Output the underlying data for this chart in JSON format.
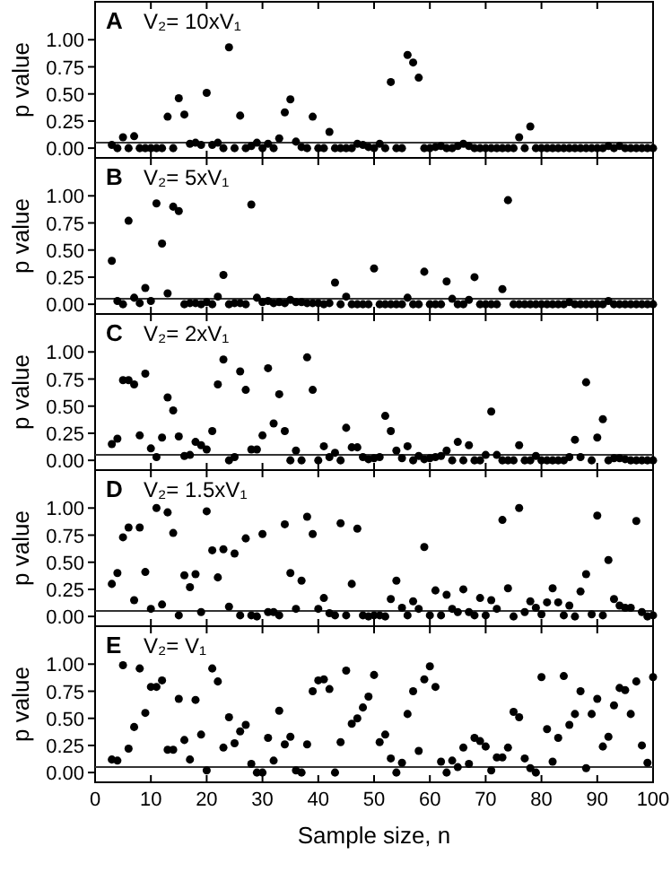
{
  "chart_data": [
    {
      "type": "scatter",
      "annotations": [
        "A",
        "V₂= 10xV₁"
      ],
      "ylabel": "p value",
      "color": "#000000",
      "marker": "circle",
      "tick_labels": "y",
      "xlim": [
        0,
        100
      ],
      "xticks": [
        0,
        10,
        20,
        30,
        40,
        50,
        60,
        70,
        80,
        90,
        100
      ],
      "ylim": [
        -0.09,
        1.35
      ],
      "yticks": [
        {
          "value": 0,
          "label": "0.00"
        },
        {
          "value": 0.25,
          "label": "0.25"
        },
        {
          "value": 0.5,
          "label": "0.50"
        },
        {
          "value": 0.75,
          "label": "0.75"
        },
        {
          "value": 1,
          "label": "1.00"
        }
      ],
      "ref_lines": [
        {
          "axis": "y",
          "value": 0.05,
          "color": "#333333"
        }
      ],
      "x": [
        3,
        4,
        5,
        6,
        7,
        8,
        9,
        10,
        11,
        12,
        13,
        14,
        15,
        16,
        17,
        18,
        19,
        20,
        21,
        22,
        23,
        24,
        25,
        26,
        27,
        28,
        29,
        30,
        31,
        32,
        33,
        34,
        35,
        36,
        37,
        38,
        39,
        40,
        41,
        42,
        43,
        44,
        45,
        46,
        47,
        48,
        49,
        50,
        51,
        52,
        53,
        54,
        55,
        56,
        57,
        58,
        59,
        60,
        61,
        62,
        63,
        64,
        65,
        66,
        67,
        68,
        69,
        70,
        71,
        72,
        73,
        74,
        75,
        76,
        77,
        78,
        79,
        80,
        81,
        82,
        83,
        84,
        85,
        86,
        87,
        88,
        89,
        90,
        91,
        92,
        93,
        94,
        95,
        96,
        97,
        98,
        99,
        100
      ],
      "values": [
        0.03,
        0,
        0.1,
        0,
        0.11,
        0,
        0,
        0,
        0,
        0,
        0.29,
        0,
        0.46,
        0.31,
        0.04,
        0.05,
        0.03,
        0.51,
        0.03,
        0.05,
        0,
        0.93,
        0,
        0.3,
        0,
        0.02,
        0.05,
        0,
        0.04,
        0,
        0.09,
        0.33,
        0.45,
        0.06,
        0.01,
        0,
        0.29,
        0,
        0,
        0.15,
        0,
        0,
        0,
        0,
        0.04,
        0.03,
        0.01,
        0,
        0.04,
        0,
        0.61,
        0,
        0,
        0.86,
        0.79,
        0.65,
        0,
        0,
        0.01,
        0.02,
        0,
        0,
        0.02,
        0.04,
        0.02,
        0,
        0,
        0,
        0,
        0,
        0,
        0,
        0,
        0.1,
        0,
        0.2,
        0,
        0,
        0,
        0,
        0,
        0,
        0,
        0,
        0,
        0,
        0,
        0,
        0,
        0.02,
        0,
        0.02,
        0,
        0,
        0,
        0,
        0,
        0
      ]
    },
    {
      "type": "scatter",
      "annotations": [
        "B",
        "V₂= 5xV₁"
      ],
      "ylabel": "p value",
      "color": "#000000",
      "marker": "circle",
      "tick_labels": "y",
      "xlim": [
        0,
        100
      ],
      "xticks": [
        0,
        10,
        20,
        30,
        40,
        50,
        60,
        70,
        80,
        90,
        100
      ],
      "ylim": [
        -0.09,
        1.35
      ],
      "yticks": [
        {
          "value": 0,
          "label": "0.00"
        },
        {
          "value": 0.25,
          "label": "0.25"
        },
        {
          "value": 0.5,
          "label": "0.50"
        },
        {
          "value": 0.75,
          "label": "0.75"
        },
        {
          "value": 1,
          "label": "1.00"
        }
      ],
      "ref_lines": [
        {
          "axis": "y",
          "value": 0.05,
          "color": "#333333"
        }
      ],
      "x": [
        3,
        4,
        5,
        6,
        7,
        8,
        9,
        10,
        11,
        12,
        13,
        14,
        15,
        16,
        17,
        18,
        19,
        20,
        21,
        22,
        23,
        24,
        25,
        26,
        27,
        28,
        29,
        30,
        31,
        32,
        33,
        34,
        35,
        36,
        37,
        38,
        39,
        40,
        41,
        42,
        43,
        44,
        45,
        46,
        47,
        48,
        49,
        50,
        51,
        52,
        53,
        54,
        55,
        56,
        57,
        58,
        59,
        60,
        61,
        62,
        63,
        64,
        65,
        66,
        67,
        68,
        69,
        70,
        71,
        72,
        73,
        74,
        75,
        76,
        77,
        78,
        79,
        80,
        81,
        82,
        83,
        84,
        85,
        86,
        87,
        88,
        89,
        90,
        91,
        92,
        93,
        94,
        95,
        96,
        97,
        98,
        99,
        100
      ],
      "values": [
        0.4,
        0.03,
        0,
        0.77,
        0.06,
        0.01,
        0.15,
        0.03,
        0.93,
        0.56,
        0.1,
        0.9,
        0.86,
        0,
        0.01,
        0.01,
        0,
        0.02,
        0,
        0.07,
        0.27,
        0,
        0.01,
        0.01,
        0,
        0.92,
        0.06,
        0.02,
        0.03,
        0.01,
        0.02,
        0.01,
        0.04,
        0.02,
        0.02,
        0.01,
        0.01,
        0.01,
        0,
        0.01,
        0.2,
        0,
        0.07,
        0,
        0,
        0,
        0,
        0.33,
        0,
        0,
        0,
        0,
        0,
        0.06,
        0,
        0,
        0.3,
        0,
        0,
        0,
        0.21,
        0.05,
        0,
        0,
        0.04,
        0.25,
        0,
        0,
        0,
        0,
        0.14,
        0.96,
        0,
        0,
        0,
        0,
        0,
        0,
        0,
        0,
        0,
        0,
        0.02,
        0,
        0,
        0,
        0,
        0,
        0,
        0.03,
        0,
        0,
        0,
        0,
        0,
        0,
        0,
        0
      ]
    },
    {
      "type": "scatter",
      "annotations": [
        "C",
        "V₂= 2xV₁"
      ],
      "ylabel": "p value",
      "color": "#000000",
      "marker": "circle",
      "tick_labels": "y",
      "xlim": [
        0,
        100
      ],
      "xticks": [
        0,
        10,
        20,
        30,
        40,
        50,
        60,
        70,
        80,
        90,
        100
      ],
      "ylim": [
        -0.09,
        1.35
      ],
      "yticks": [
        {
          "value": 0,
          "label": "0.00"
        },
        {
          "value": 0.25,
          "label": "0.25"
        },
        {
          "value": 0.5,
          "label": "0.50"
        },
        {
          "value": 0.75,
          "label": "0.75"
        },
        {
          "value": 1,
          "label": "1.00"
        }
      ],
      "ref_lines": [
        {
          "axis": "y",
          "value": 0.05,
          "color": "#333333"
        }
      ],
      "x": [
        3,
        4,
        5,
        6,
        7,
        8,
        9,
        10,
        11,
        12,
        13,
        14,
        15,
        16,
        17,
        18,
        19,
        20,
        21,
        22,
        23,
        24,
        25,
        26,
        27,
        28,
        29,
        30,
        31,
        32,
        33,
        34,
        35,
        36,
        37,
        38,
        39,
        40,
        41,
        42,
        43,
        44,
        45,
        46,
        47,
        48,
        49,
        50,
        51,
        52,
        53,
        54,
        55,
        56,
        57,
        58,
        59,
        60,
        61,
        62,
        63,
        64,
        65,
        66,
        67,
        68,
        69,
        70,
        71,
        72,
        73,
        74,
        75,
        76,
        77,
        78,
        79,
        80,
        81,
        82,
        83,
        84,
        85,
        86,
        87,
        88,
        89,
        90,
        91,
        92,
        93,
        94,
        95,
        96,
        97,
        98,
        99,
        100
      ],
      "values": [
        0.15,
        0.2,
        0.74,
        0.74,
        0.7,
        0.23,
        0.8,
        0.11,
        0.03,
        0.21,
        0.58,
        0.46,
        0.22,
        0.04,
        0.05,
        0.17,
        0.14,
        0.1,
        0.27,
        0.7,
        0.93,
        0,
        0.03,
        0.82,
        0.65,
        0.1,
        0.1,
        0.23,
        0.85,
        0.34,
        0.61,
        0.27,
        0,
        0.09,
        0,
        0.95,
        0.65,
        0,
        0.13,
        0.03,
        0.07,
        0,
        0.3,
        0.12,
        0.12,
        0.03,
        0.01,
        0.02,
        0.03,
        0.41,
        0.27,
        0.09,
        0.02,
        0.13,
        0,
        0.04,
        0.01,
        0.02,
        0.03,
        0.04,
        0.09,
        0,
        0.17,
        0,
        0.14,
        0,
        0,
        0.05,
        0.45,
        0.05,
        0,
        0,
        0,
        0.14,
        0,
        0,
        0.04,
        0,
        0,
        0,
        0,
        0,
        0.03,
        0.19,
        0.03,
        0.72,
        0,
        0.21,
        0.38,
        0,
        0.02,
        0.02,
        0.01,
        0,
        0,
        0,
        0,
        0
      ]
    },
    {
      "type": "scatter",
      "annotations": [
        "D",
        "V₂= 1.5xV₁"
      ],
      "ylabel": "p value",
      "color": "#000000",
      "marker": "circle",
      "tick_labels": "y",
      "xlim": [
        0,
        100
      ],
      "xticks": [
        0,
        10,
        20,
        30,
        40,
        50,
        60,
        70,
        80,
        90,
        100
      ],
      "ylim": [
        -0.09,
        1.35
      ],
      "yticks": [
        {
          "value": 0,
          "label": "0.00"
        },
        {
          "value": 0.25,
          "label": "0.25"
        },
        {
          "value": 0.5,
          "label": "0.50"
        },
        {
          "value": 0.75,
          "label": "0.75"
        },
        {
          "value": 1,
          "label": "1.00"
        }
      ],
      "ref_lines": [
        {
          "axis": "y",
          "value": 0.05,
          "color": "#333333"
        }
      ],
      "x": [
        3,
        4,
        5,
        6,
        7,
        8,
        9,
        10,
        11,
        12,
        13,
        14,
        15,
        16,
        17,
        18,
        19,
        20,
        21,
        22,
        23,
        24,
        25,
        26,
        27,
        28,
        29,
        30,
        31,
        32,
        33,
        34,
        35,
        36,
        37,
        38,
        39,
        40,
        41,
        42,
        43,
        44,
        45,
        46,
        47,
        48,
        49,
        50,
        51,
        52,
        53,
        54,
        55,
        56,
        57,
        58,
        59,
        60,
        61,
        62,
        63,
        64,
        65,
        66,
        67,
        68,
        69,
        70,
        71,
        72,
        73,
        74,
        75,
        76,
        77,
        78,
        79,
        80,
        81,
        82,
        83,
        84,
        85,
        86,
        87,
        88,
        89,
        90,
        91,
        92,
        93,
        94,
        95,
        96,
        97,
        98,
        99,
        100
      ],
      "values": [
        0.3,
        0.4,
        0.73,
        0.82,
        0.15,
        0.82,
        0.41,
        0.07,
        1,
        0.11,
        0.96,
        0.77,
        0.01,
        0.38,
        0.27,
        0.39,
        0.04,
        0.97,
        0.61,
        0.36,
        0.62,
        0.09,
        0.58,
        0.01,
        0.72,
        0.01,
        0,
        0.76,
        0.04,
        0.04,
        0.01,
        0.85,
        0.4,
        0.07,
        0.33,
        0.92,
        0.76,
        0.07,
        0.17,
        0.03,
        0.01,
        0.86,
        0.01,
        0.3,
        0.81,
        0.01,
        0,
        0.01,
        0.01,
        0,
        0.16,
        0.33,
        0.08,
        0.01,
        0.14,
        0.07,
        0.64,
        0.01,
        0.24,
        0.01,
        0.2,
        0.07,
        0.04,
        0.25,
        0.04,
        0.01,
        0.17,
        0.01,
        0.15,
        0.07,
        0.89,
        0.26,
        0,
        1,
        0.04,
        0.14,
        0.08,
        0.02,
        0.13,
        0.26,
        0.13,
        0.01,
        0.1,
        0,
        0.23,
        0.39,
        0.02,
        0.93,
        0.01,
        0.52,
        0.16,
        0.1,
        0.08,
        0.08,
        0.88,
        0.04,
        0,
        0.01
      ]
    },
    {
      "type": "scatter",
      "annotations": [
        "E",
        "V₂= V₁"
      ],
      "ylabel": "p value",
      "xlabel": "Sample size, n",
      "color": "#000000",
      "marker": "circle",
      "xlim": [
        0,
        100
      ],
      "xticks": [
        0,
        10,
        20,
        30,
        40,
        50,
        60,
        70,
        80,
        90,
        100
      ],
      "ylim": [
        -0.09,
        1.35
      ],
      "yticks": [
        {
          "value": 0,
          "label": "0.00"
        },
        {
          "value": 0.25,
          "label": "0.25"
        },
        {
          "value": 0.5,
          "label": "0.50"
        },
        {
          "value": 0.75,
          "label": "0.75"
        },
        {
          "value": 1,
          "label": "1.00"
        }
      ],
      "ref_lines": [
        {
          "axis": "y",
          "value": 0.05,
          "color": "#333333"
        }
      ],
      "x": [
        3,
        4,
        5,
        6,
        7,
        8,
        9,
        10,
        11,
        12,
        13,
        14,
        15,
        16,
        17,
        18,
        19,
        20,
        21,
        22,
        23,
        24,
        25,
        26,
        27,
        28,
        29,
        30,
        31,
        32,
        33,
        34,
        35,
        36,
        37,
        38,
        39,
        40,
        41,
        42,
        43,
        44,
        45,
        46,
        47,
        48,
        49,
        50,
        51,
        52,
        53,
        54,
        55,
        56,
        57,
        58,
        59,
        60,
        61,
        62,
        63,
        64,
        65,
        66,
        67,
        68,
        69,
        70,
        71,
        72,
        73,
        74,
        75,
        76,
        77,
        78,
        79,
        80,
        81,
        82,
        83,
        84,
        85,
        86,
        87,
        88,
        89,
        90,
        91,
        92,
        93,
        94,
        95,
        96,
        97,
        98,
        99,
        100
      ],
      "values": [
        0.12,
        0.11,
        0.99,
        0.22,
        0.42,
        0.96,
        0.55,
        0.79,
        0.79,
        0.85,
        0.21,
        0.21,
        0.68,
        0.3,
        0.12,
        0.67,
        0.35,
        0.02,
        0.96,
        0.84,
        0.23,
        0.51,
        0.27,
        0.38,
        0.44,
        0.08,
        0,
        0,
        0.32,
        0.11,
        0.57,
        0.26,
        0.33,
        0.02,
        0,
        0.26,
        0.75,
        0.85,
        0.86,
        0.77,
        0,
        0.28,
        0.94,
        0.45,
        0.5,
        0.6,
        0.7,
        0.9,
        0.28,
        0.35,
        0.13,
        0,
        0.09,
        0.54,
        0.75,
        0.2,
        0.86,
        0.98,
        0.79,
        0.1,
        0,
        0.11,
        0.05,
        0.23,
        0.08,
        0.32,
        0.29,
        0.24,
        0.02,
        0.14,
        0.14,
        0.23,
        0.56,
        0.51,
        0.13,
        0.04,
        0,
        0.88,
        0.4,
        0.1,
        0.32,
        0.89,
        0.44,
        0.54,
        0.75,
        0.04,
        0.54,
        0.68,
        0.24,
        0.33,
        0.62,
        0.78,
        0.76,
        0.54,
        0.84,
        0.25,
        0.09,
        0.88
      ]
    }
  ]
}
